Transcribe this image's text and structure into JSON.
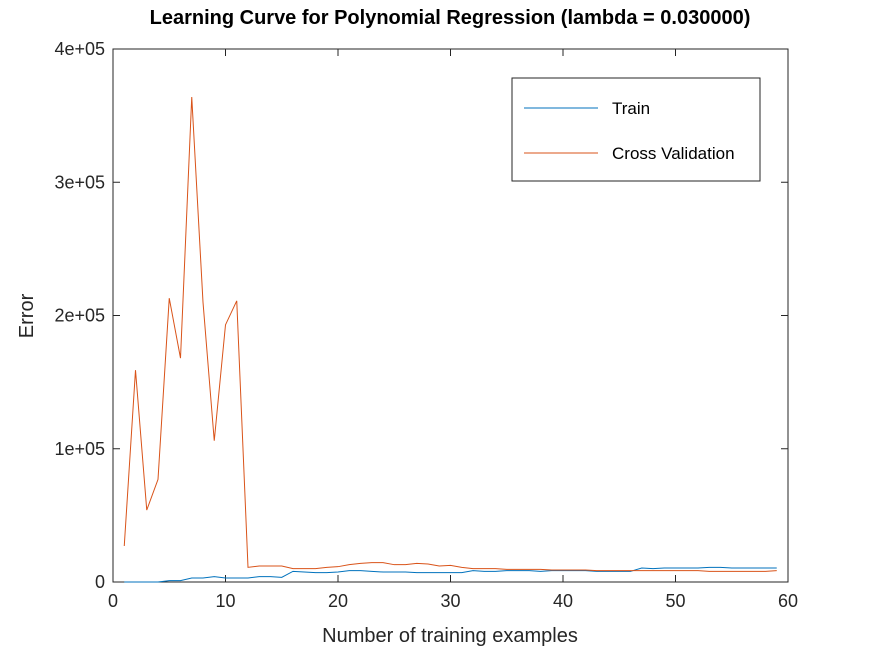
{
  "chart_data": {
    "type": "line",
    "title": "Learning Curve for Polynomial Regression (lambda = 0.030000)",
    "xlabel": "Number of training examples",
    "ylabel": "Error",
    "xlim": [
      0,
      60
    ],
    "ylim": [
      0,
      400000
    ],
    "x_ticks": [
      0,
      10,
      20,
      30,
      40,
      50,
      60
    ],
    "x_tick_labels": [
      "0",
      "10",
      "20",
      "30",
      "40",
      "50",
      "60"
    ],
    "y_ticks": [
      0,
      100000,
      200000,
      300000,
      400000
    ],
    "y_tick_labels": [
      "0",
      "1e+05",
      "2e+05",
      "3e+05",
      "4e+05"
    ],
    "grid": false,
    "legend_position": "top-right",
    "x": [
      1,
      2,
      3,
      4,
      5,
      6,
      7,
      8,
      9,
      10,
      11,
      12,
      13,
      14,
      15,
      16,
      17,
      18,
      19,
      20,
      21,
      22,
      23,
      24,
      25,
      26,
      27,
      28,
      29,
      30,
      31,
      32,
      33,
      34,
      35,
      36,
      37,
      38,
      39,
      40,
      41,
      42,
      43,
      44,
      45,
      46,
      47,
      48,
      49,
      50,
      51,
      52,
      53,
      54,
      55,
      56,
      57,
      58,
      59
    ],
    "series": [
      {
        "name": "Train",
        "color": "#0072BD",
        "values": [
          0,
          0,
          0,
          0,
          1000,
          1000,
          3000,
          3000,
          4000,
          3000,
          3000,
          3000,
          4000,
          4000,
          3500,
          8000,
          7500,
          7000,
          7000,
          7500,
          8500,
          8500,
          8000,
          7500,
          7500,
          7500,
          7000,
          7000,
          7000,
          7000,
          7000,
          8500,
          8000,
          8000,
          8500,
          8500,
          8500,
          8000,
          8500,
          8500,
          8500,
          8500,
          8000,
          8000,
          8000,
          8000,
          10500,
          10000,
          10500,
          10500,
          10500,
          10500,
          11000,
          11000,
          10500,
          10500,
          10500,
          10500,
          10500
        ]
      },
      {
        "name": "Cross Validation",
        "color": "#D95319",
        "values": [
          27000,
          159000,
          54000,
          77000,
          213000,
          168000,
          364000,
          210000,
          106000,
          193000,
          211000,
          11000,
          12000,
          12000,
          12000,
          10000,
          10000,
          10000,
          11000,
          11500,
          13000,
          14000,
          14500,
          14500,
          13000,
          13000,
          14000,
          13500,
          12000,
          12500,
          11000,
          10000,
          10000,
          10000,
          9500,
          9500,
          9500,
          9500,
          9000,
          9000,
          9000,
          9000,
          8500,
          8500,
          8500,
          8500,
          8500,
          8500,
          8500,
          8500,
          8500,
          8500,
          8000,
          8000,
          8000,
          8000,
          8000,
          8000,
          8500
        ]
      }
    ]
  }
}
